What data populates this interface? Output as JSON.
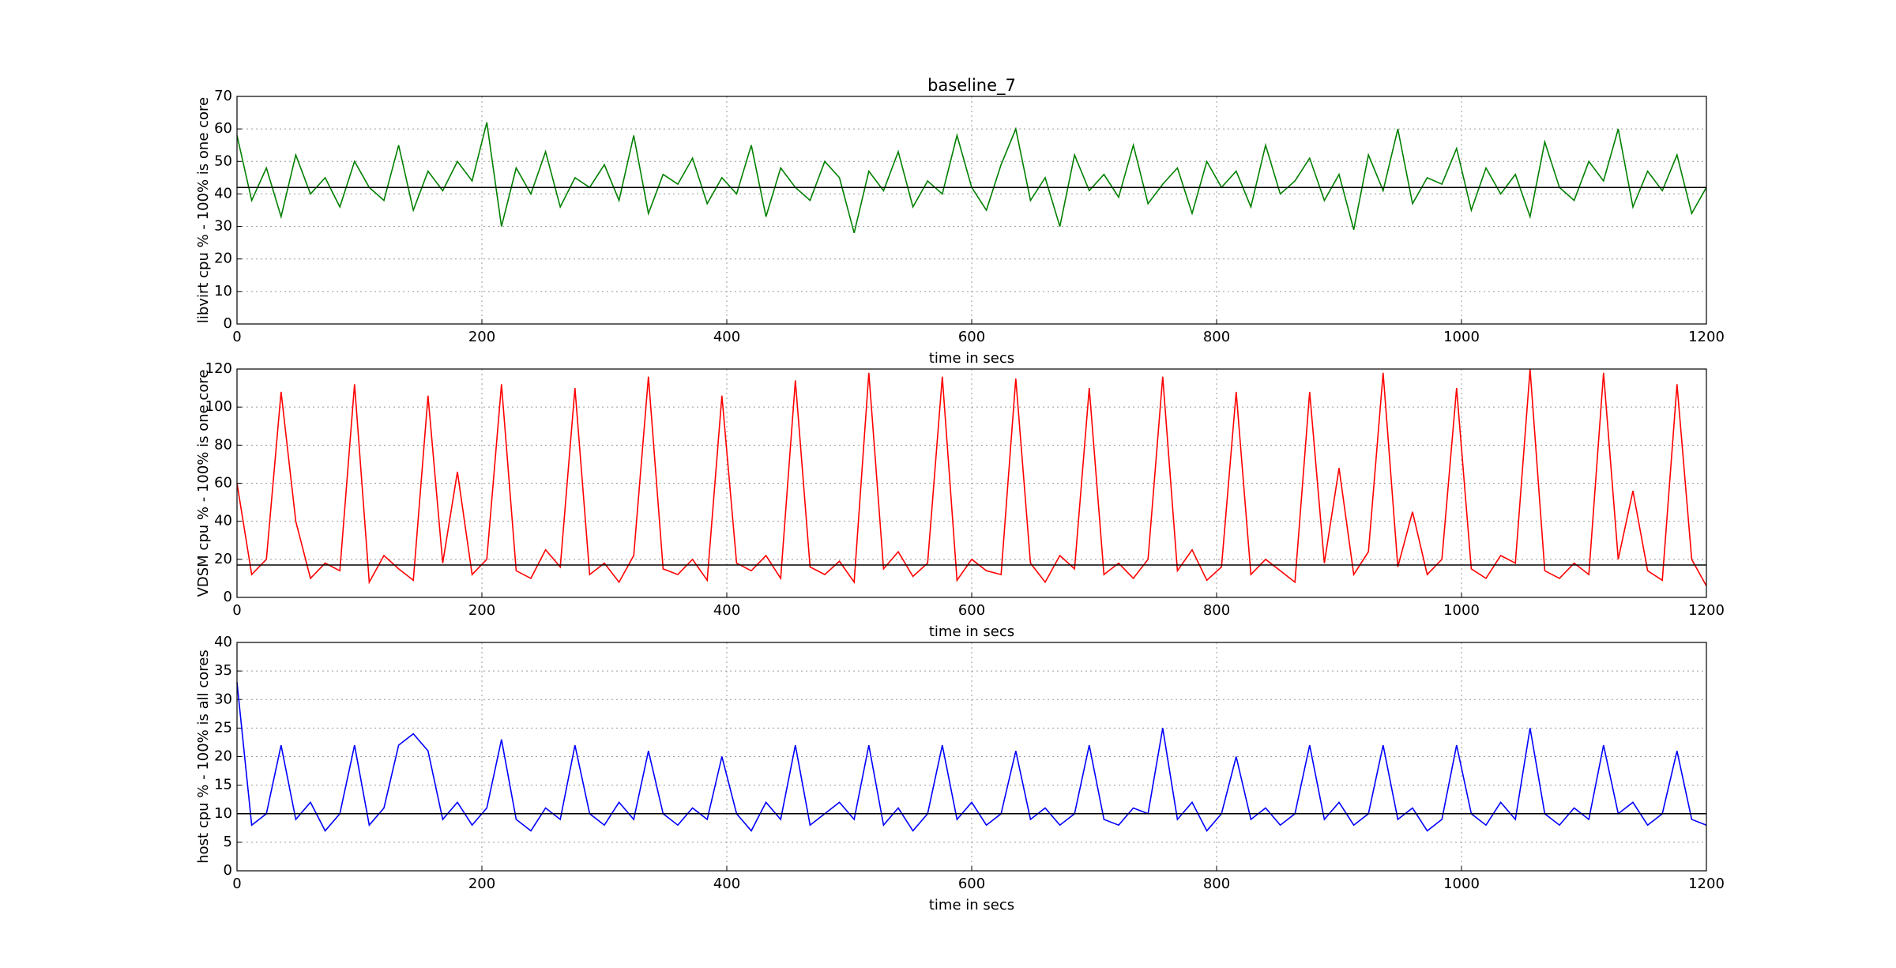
{
  "chart_data": [
    {
      "type": "line",
      "title": "baseline_7",
      "ylabel": "libvirt cpu % - 100% is one core",
      "xlabel": "time in secs",
      "color": "#008000",
      "hline": 42,
      "grid": true,
      "xlim": [
        0,
        1200
      ],
      "xticks": [
        0,
        200,
        400,
        600,
        800,
        1000,
        1200
      ],
      "ylim": [
        0,
        70
      ],
      "yticks": [
        0,
        10,
        20,
        30,
        40,
        50,
        60,
        70
      ],
      "x": [
        0,
        12,
        24,
        36,
        48,
        60,
        72,
        84,
        96,
        108,
        120,
        132,
        144,
        156,
        168,
        180,
        192,
        204,
        216,
        228,
        240,
        252,
        264,
        276,
        288,
        300,
        312,
        324,
        336,
        348,
        360,
        372,
        384,
        396,
        408,
        420,
        432,
        444,
        456,
        468,
        480,
        492,
        504,
        516,
        528,
        540,
        552,
        564,
        576,
        588,
        600,
        612,
        624,
        636,
        648,
        660,
        672,
        684,
        696,
        708,
        720,
        732,
        744,
        756,
        768,
        780,
        792,
        804,
        816,
        828,
        840,
        852,
        864,
        876,
        888,
        900,
        912,
        924,
        936,
        948,
        960,
        972,
        984,
        996,
        1008,
        1020,
        1032,
        1044,
        1056,
        1068,
        1080,
        1092,
        1104,
        1116,
        1128,
        1140,
        1152,
        1164,
        1176,
        1188,
        1200
      ],
      "values": [
        58,
        38,
        48,
        33,
        52,
        40,
        45,
        36,
        50,
        42,
        38,
        55,
        35,
        47,
        41,
        50,
        44,
        62,
        30,
        48,
        40,
        53,
        36,
        45,
        42,
        49,
        38,
        58,
        34,
        46,
        43,
        51,
        37,
        45,
        40,
        55,
        33,
        48,
        42,
        38,
        50,
        45,
        28,
        47,
        41,
        53,
        36,
        44,
        40,
        58,
        42,
        35,
        49,
        60,
        38,
        45,
        30,
        52,
        41,
        46,
        39,
        55,
        37,
        43,
        48,
        34,
        50,
        42,
        47,
        36,
        55,
        40,
        44,
        51,
        38,
        46,
        29,
        52,
        41,
        60,
        37,
        45,
        43,
        54,
        35,
        48,
        40,
        46,
        33,
        56,
        42,
        38,
        50,
        44,
        60,
        36,
        47,
        41,
        52,
        34,
        42
      ]
    },
    {
      "type": "line",
      "ylabel": "VDSM cpu % - 100% is one core",
      "xlabel": "time in secs",
      "color": "#ff0000",
      "hline": 17,
      "grid": true,
      "xlim": [
        0,
        1200
      ],
      "xticks": [
        0,
        200,
        400,
        600,
        800,
        1000,
        1200
      ],
      "ylim": [
        0,
        120
      ],
      "yticks": [
        0,
        20,
        40,
        60,
        80,
        100,
        120
      ],
      "x": [
        0,
        12,
        24,
        36,
        48,
        60,
        72,
        84,
        96,
        108,
        120,
        132,
        144,
        156,
        168,
        180,
        192,
        204,
        216,
        228,
        240,
        252,
        264,
        276,
        288,
        300,
        312,
        324,
        336,
        348,
        360,
        372,
        384,
        396,
        408,
        420,
        432,
        444,
        456,
        468,
        480,
        492,
        504,
        516,
        528,
        540,
        552,
        564,
        576,
        588,
        600,
        612,
        624,
        636,
        648,
        660,
        672,
        684,
        696,
        708,
        720,
        732,
        744,
        756,
        768,
        780,
        792,
        804,
        816,
        828,
        840,
        852,
        864,
        876,
        888,
        900,
        912,
        924,
        936,
        948,
        960,
        972,
        984,
        996,
        1008,
        1020,
        1032,
        1044,
        1056,
        1068,
        1080,
        1092,
        1104,
        1116,
        1128,
        1140,
        1152,
        1164,
        1176,
        1188,
        1200
      ],
      "values": [
        60,
        12,
        20,
        108,
        40,
        10,
        18,
        14,
        112,
        8,
        22,
        15,
        9,
        106,
        18,
        66,
        12,
        20,
        112,
        14,
        10,
        25,
        16,
        110,
        12,
        18,
        8,
        22,
        116,
        15,
        12,
        20,
        9,
        106,
        18,
        14,
        22,
        10,
        114,
        16,
        12,
        19,
        8,
        118,
        15,
        24,
        11,
        18,
        116,
        9,
        20,
        14,
        12,
        115,
        18,
        8,
        22,
        15,
        110,
        12,
        18,
        10,
        20,
        116,
        14,
        25,
        9,
        16,
        108,
        12,
        20,
        14,
        8,
        108,
        18,
        68,
        12,
        24,
        118,
        16,
        45,
        12,
        20,
        110,
        15,
        10,
        22,
        18,
        120,
        14,
        10,
        18,
        12,
        118,
        20,
        56,
        14,
        9,
        112,
        20,
        6
      ]
    },
    {
      "type": "line",
      "ylabel": "host cpu % - 100% is all cores",
      "xlabel": "time in secs",
      "color": "#0000ff",
      "hline": 10,
      "grid": true,
      "xlim": [
        0,
        1200
      ],
      "xticks": [
        0,
        200,
        400,
        600,
        800,
        1000,
        1200
      ],
      "ylim": [
        0,
        40
      ],
      "yticks": [
        0,
        5,
        10,
        15,
        20,
        25,
        30,
        35,
        40
      ],
      "x": [
        0,
        12,
        24,
        36,
        48,
        60,
        72,
        84,
        96,
        108,
        120,
        132,
        144,
        156,
        168,
        180,
        192,
        204,
        216,
        228,
        240,
        252,
        264,
        276,
        288,
        300,
        312,
        324,
        336,
        348,
        360,
        372,
        384,
        396,
        408,
        420,
        432,
        444,
        456,
        468,
        480,
        492,
        504,
        516,
        528,
        540,
        552,
        564,
        576,
        588,
        600,
        612,
        624,
        636,
        648,
        660,
        672,
        684,
        696,
        708,
        720,
        732,
        744,
        756,
        768,
        780,
        792,
        804,
        816,
        828,
        840,
        852,
        864,
        876,
        888,
        900,
        912,
        924,
        936,
        948,
        960,
        972,
        984,
        996,
        1008,
        1020,
        1032,
        1044,
        1056,
        1068,
        1080,
        1092,
        1104,
        1116,
        1128,
        1140,
        1152,
        1164,
        1176,
        1188,
        1200
      ],
      "values": [
        33,
        8,
        10,
        22,
        9,
        12,
        7,
        10,
        22,
        8,
        11,
        22,
        24,
        21,
        9,
        12,
        8,
        11,
        23,
        9,
        7,
        11,
        9,
        22,
        10,
        8,
        12,
        9,
        21,
        10,
        8,
        11,
        9,
        20,
        10,
        7,
        12,
        9,
        22,
        8,
        10,
        12,
        9,
        22,
        8,
        11,
        7,
        10,
        22,
        9,
        12,
        8,
        10,
        21,
        9,
        11,
        8,
        10,
        22,
        9,
        8,
        11,
        10,
        25,
        9,
        12,
        7,
        10,
        20,
        9,
        11,
        8,
        10,
        22,
        9,
        12,
        8,
        10,
        22,
        9,
        11,
        7,
        9,
        22,
        10,
        8,
        12,
        9,
        25,
        10,
        8,
        11,
        9,
        22,
        10,
        12,
        8,
        10,
        21,
        9,
        8
      ]
    }
  ]
}
